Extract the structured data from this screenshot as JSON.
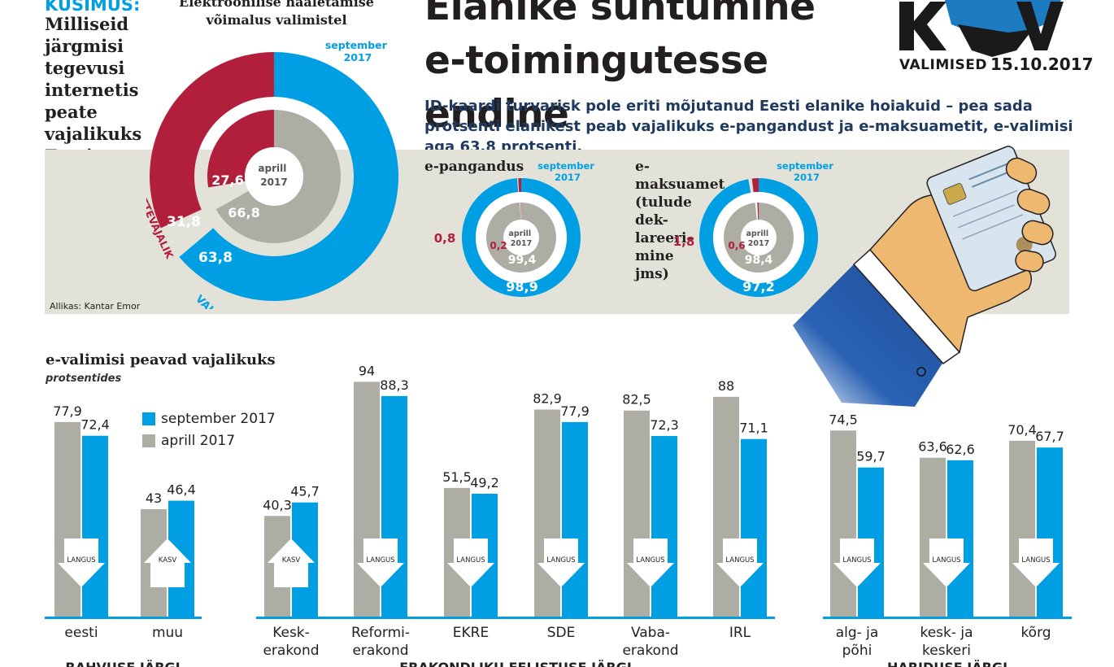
{
  "header": {
    "question_label": "KÜSIMUS:",
    "question": "Milliseid järgmisi tegevusi internetis peate vajalikuks Eesti inimestele?",
    "headline_line1": "Elanike suhtumine",
    "headline_line2": "e-toimingutesse endine",
    "subtext": "ID-kaardi turvarisk pole eriti mõjutanud Eesti elanike hoiakuid – pea sada protsenti elanikest peab vajalikuks e-pangandust ja e-maksuametit, e-valimisi aga 63,8 protsenti.",
    "logo_text": "VALIMISED",
    "logo_date": "15.10.2017"
  },
  "colors": {
    "september": "#009fe3",
    "april": "#aeada4",
    "not_needed": "#b11f3d",
    "band": "#e3e2d8",
    "logo_dark": "#1a1a1a",
    "logo_blue": "#1d7bc2",
    "sleeve": "#2a62b4",
    "hand": "#eeb870"
  },
  "main_donut": {
    "caption": "Elektroonilise hääletamise võimalus valimistel",
    "outer_label": "september 2017",
    "inner_label": "aprill 2017",
    "outer_needed": "63,8",
    "outer_not_needed": "31,8",
    "inner_needed": "66,8",
    "inner_not_needed": "27,6",
    "label_needed": "VAJALIK",
    "label_not_needed": "MITTEVAJALIK",
    "source": "Allikas: Kantar Emor"
  },
  "small_donuts": [
    {
      "title": "e-pangandus",
      "outer_label": "september 2017",
      "inner_label": "aprill 2017",
      "outer_needed": "98,9",
      "outer_not_needed": "0,8",
      "inner_needed": "99,4",
      "inner_not_needed": "0,2"
    },
    {
      "title": "e-maksuamet (tulude deklareerimine jms)",
      "title_lines": [
        "e-maksuamet",
        "(tulude dek-",
        "lareeri-",
        "mine",
        "jms)"
      ],
      "outer_label": "september 2017",
      "inner_label": "aprill 2017",
      "outer_needed": "97,2",
      "outer_not_needed": "1,8",
      "inner_needed": "98,4",
      "inner_not_needed": "0,6"
    }
  ],
  "bars_section": {
    "title": "e-valimisi peavad vajalikuks",
    "subtitle": "protsentides",
    "legend_september": "september 2017",
    "legend_april": "aprill 2017",
    "group_labels": [
      "RAHVUSE JÄRGI",
      "ERAKONDLIKU EELISTUSE JÄRGI",
      "HARIDUSE JÄRGI"
    ]
  },
  "chart_data": {
    "type": "bar",
    "title": "e-valimisi peavad vajalikuks",
    "ylabel": "protsentides",
    "ylim": [
      0,
      100
    ],
    "series": [
      {
        "name": "aprill 2017",
        "values": [
          77.9,
          43,
          40.3,
          94,
          51.5,
          82.9,
          82.5,
          88,
          74.5,
          63.6,
          70.4
        ]
      },
      {
        "name": "september 2017",
        "values": [
          72.4,
          46.4,
          45.7,
          88.3,
          49.2,
          77.9,
          72.3,
          71.1,
          59.7,
          62.6,
          67.7
        ]
      }
    ],
    "categories": [
      "eesti",
      "muu",
      "Kesk-erakond",
      "Reformi-erakond",
      "EKRE",
      "SDE",
      "Vaba-erakond",
      "IRL",
      "alg- ja põhi",
      "kesk- ja keskeri",
      "kõrg"
    ],
    "category_lines": [
      [
        "eesti"
      ],
      [
        "muu"
      ],
      [
        "Kesk-",
        "erakond"
      ],
      [
        "Reformi-",
        "erakond"
      ],
      [
        "EKRE"
      ],
      [
        "SDE"
      ],
      [
        "Vaba-",
        "erakond"
      ],
      [
        "IRL"
      ],
      [
        "alg- ja",
        "põhi"
      ],
      [
        "kesk- ja",
        "keskeri"
      ],
      [
        "kõrg"
      ]
    ],
    "april_labels": [
      "77,9",
      "43",
      "40,3",
      "94",
      "51,5",
      "82,9",
      "82,5",
      "88",
      "74,5",
      "63,6",
      "70,4"
    ],
    "september_labels": [
      "72,4",
      "46,4",
      "45,7",
      "88,3",
      "49,2",
      "77,9",
      "72,3",
      "71,1",
      "59,7",
      "62,6",
      "67,7"
    ],
    "arrows": [
      "LANGUS",
      "KASV",
      "KASV",
      "LANGUS",
      "LANGUS",
      "LANGUS",
      "LANGUS",
      "LANGUS",
      "LANGUS",
      "LANGUS",
      "LANGUS"
    ],
    "groups": [
      {
        "name": "RAHVUSE JÄRGI",
        "categories": [
          0,
          1
        ]
      },
      {
        "name": "ERAKONDLIKU EELISTUSE JÄRGI",
        "categories": [
          2,
          3,
          4,
          5,
          6,
          7
        ]
      },
      {
        "name": "HARIDUSE JÄRGI",
        "categories": [
          8,
          9,
          10
        ]
      }
    ],
    "donuts": [
      {
        "name": "e-valimised",
        "september": {
          "vajalik": 63.8,
          "mittevajalik": 31.8
        },
        "aprill": {
          "vajalik": 66.8,
          "mittevajalik": 27.6
        }
      },
      {
        "name": "e-pangandus",
        "september": {
          "vajalik": 98.9,
          "mittevajalik": 0.8
        },
        "aprill": {
          "vajalik": 99.4,
          "mittevajalik": 0.2
        }
      },
      {
        "name": "e-maksuamet",
        "september": {
          "vajalik": 97.2,
          "mittevajalik": 1.8
        },
        "aprill": {
          "vajalik": 98.4,
          "mittevajalik": 0.6
        }
      }
    ]
  }
}
